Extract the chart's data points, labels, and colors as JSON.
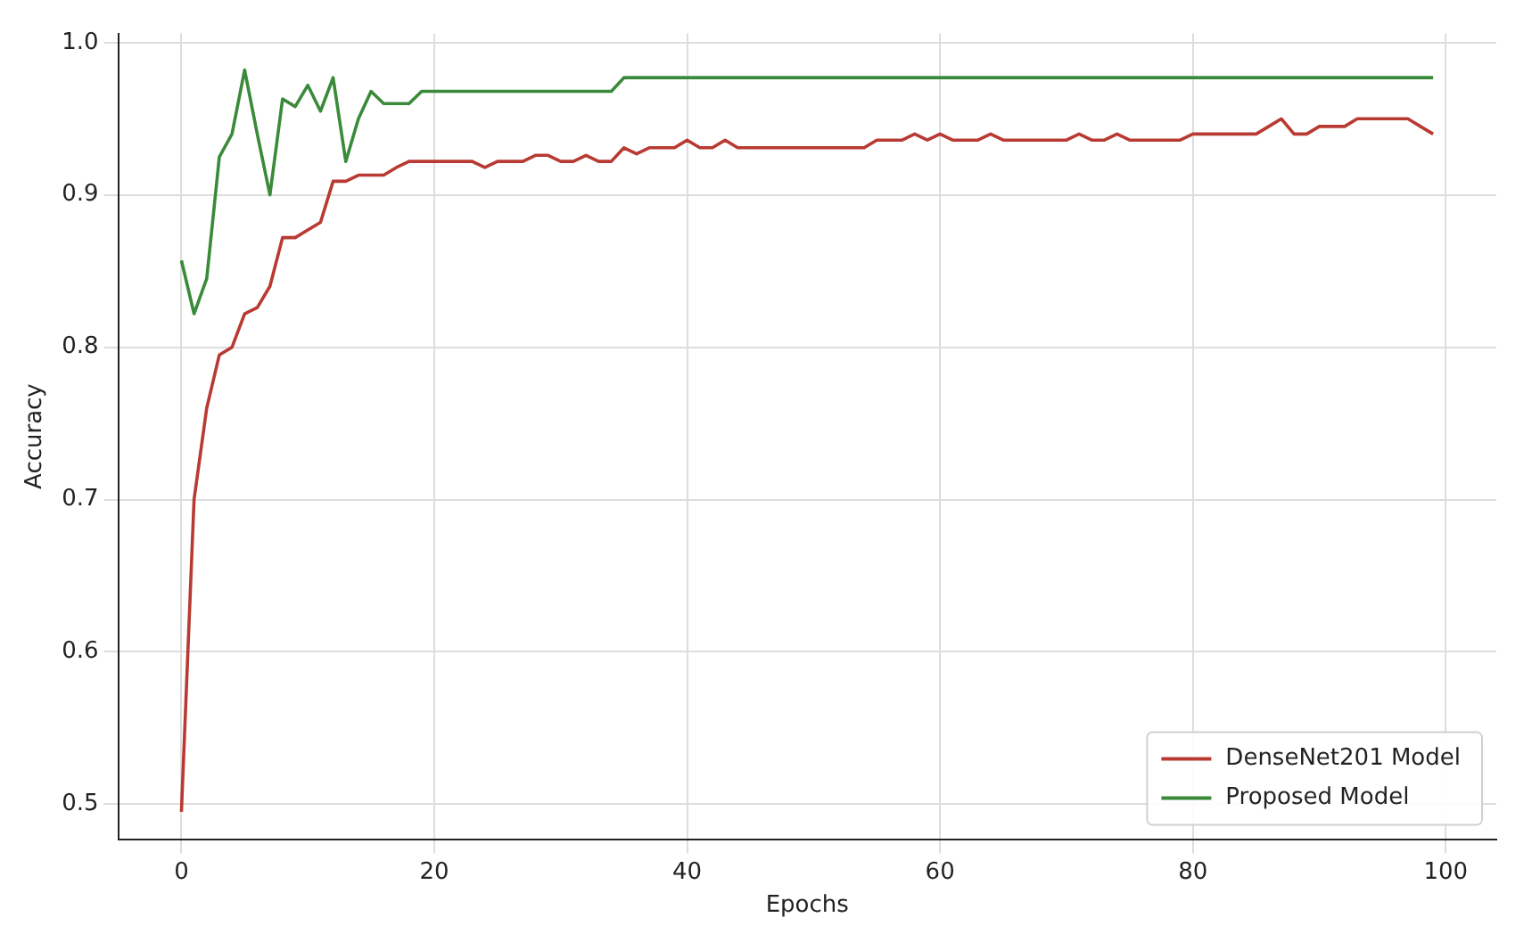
{
  "chart_data": {
    "type": "line",
    "xlabel": "Epochs",
    "ylabel": "Accuracy",
    "x": [
      0,
      1,
      2,
      3,
      4,
      5,
      6,
      7,
      8,
      9,
      10,
      11,
      12,
      13,
      14,
      15,
      16,
      17,
      18,
      19,
      20,
      21,
      22,
      23,
      24,
      25,
      26,
      27,
      28,
      29,
      30,
      31,
      32,
      33,
      34,
      35,
      36,
      37,
      38,
      39,
      40,
      41,
      42,
      43,
      44,
      45,
      46,
      47,
      48,
      49,
      50,
      51,
      52,
      53,
      54,
      55,
      56,
      57,
      58,
      59,
      60,
      61,
      62,
      63,
      64,
      65,
      66,
      67,
      68,
      69,
      70,
      71,
      72,
      73,
      74,
      75,
      76,
      77,
      78,
      79,
      80,
      81,
      82,
      83,
      84,
      85,
      86,
      87,
      88,
      89,
      90,
      91,
      92,
      93,
      94,
      95,
      96,
      97,
      98,
      99
    ],
    "series": [
      {
        "name": "DenseNet201 Model",
        "color": "#b83a32",
        "values": [
          0.495,
          0.7,
          0.76,
          0.795,
          0.8,
          0.822,
          0.826,
          0.84,
          0.872,
          0.872,
          0.877,
          0.882,
          0.909,
          0.909,
          0.913,
          0.913,
          0.913,
          0.918,
          0.922,
          0.922,
          0.922,
          0.922,
          0.922,
          0.922,
          0.918,
          0.922,
          0.922,
          0.922,
          0.926,
          0.926,
          0.922,
          0.922,
          0.926,
          0.922,
          0.922,
          0.931,
          0.927,
          0.931,
          0.931,
          0.931,
          0.936,
          0.931,
          0.931,
          0.936,
          0.931,
          0.931,
          0.931,
          0.931,
          0.931,
          0.931,
          0.931,
          0.931,
          0.931,
          0.931,
          0.931,
          0.936,
          0.936,
          0.936,
          0.94,
          0.936,
          0.94,
          0.936,
          0.936,
          0.936,
          0.94,
          0.936,
          0.936,
          0.936,
          0.936,
          0.936,
          0.936,
          0.94,
          0.936,
          0.936,
          0.94,
          0.936,
          0.936,
          0.936,
          0.936,
          0.936,
          0.94,
          0.94,
          0.94,
          0.94,
          0.94,
          0.94,
          0.945,
          0.95,
          0.94,
          0.94,
          0.945,
          0.945,
          0.945,
          0.95,
          0.95,
          0.95,
          0.95,
          0.95,
          0.945,
          0.94
        ]
      },
      {
        "name": "Proposed Model",
        "color": "#3a8a3a",
        "values": [
          0.857,
          0.822,
          0.845,
          0.925,
          0.94,
          0.982,
          0.94,
          0.9,
          0.963,
          0.958,
          0.972,
          0.955,
          0.977,
          0.922,
          0.95,
          0.968,
          0.96,
          0.96,
          0.96,
          0.968,
          0.968,
          0.968,
          0.968,
          0.968,
          0.968,
          0.968,
          0.968,
          0.968,
          0.968,
          0.968,
          0.968,
          0.968,
          0.968,
          0.968,
          0.968,
          0.977,
          0.977,
          0.977,
          0.977,
          0.977,
          0.977,
          0.977,
          0.977,
          0.977,
          0.977,
          0.977,
          0.977,
          0.977,
          0.977,
          0.977,
          0.977,
          0.977,
          0.977,
          0.977,
          0.977,
          0.977,
          0.977,
          0.977,
          0.977,
          0.977,
          0.977,
          0.977,
          0.977,
          0.977,
          0.977,
          0.977,
          0.977,
          0.977,
          0.977,
          0.977,
          0.977,
          0.977,
          0.977,
          0.977,
          0.977,
          0.977,
          0.977,
          0.977,
          0.977,
          0.977,
          0.977,
          0.977,
          0.977,
          0.977,
          0.977,
          0.977,
          0.977,
          0.977,
          0.977,
          0.977,
          0.977,
          0.977,
          0.977,
          0.977,
          0.977,
          0.977,
          0.977,
          0.977,
          0.977,
          0.977
        ]
      }
    ],
    "xlim": [
      -5,
      104
    ],
    "xticks": [
      0,
      20,
      40,
      60,
      80,
      100
    ],
    "ylim": [
      0.477,
      1.006
    ],
    "yticks": [
      0.5,
      0.6,
      0.7,
      0.8,
      0.9,
      {
        "value": 1,
        "label": "1.0"
      }
    ],
    "grid": true,
    "legend": "bottom right",
    "marker": "none",
    "line_style": "solid"
  }
}
